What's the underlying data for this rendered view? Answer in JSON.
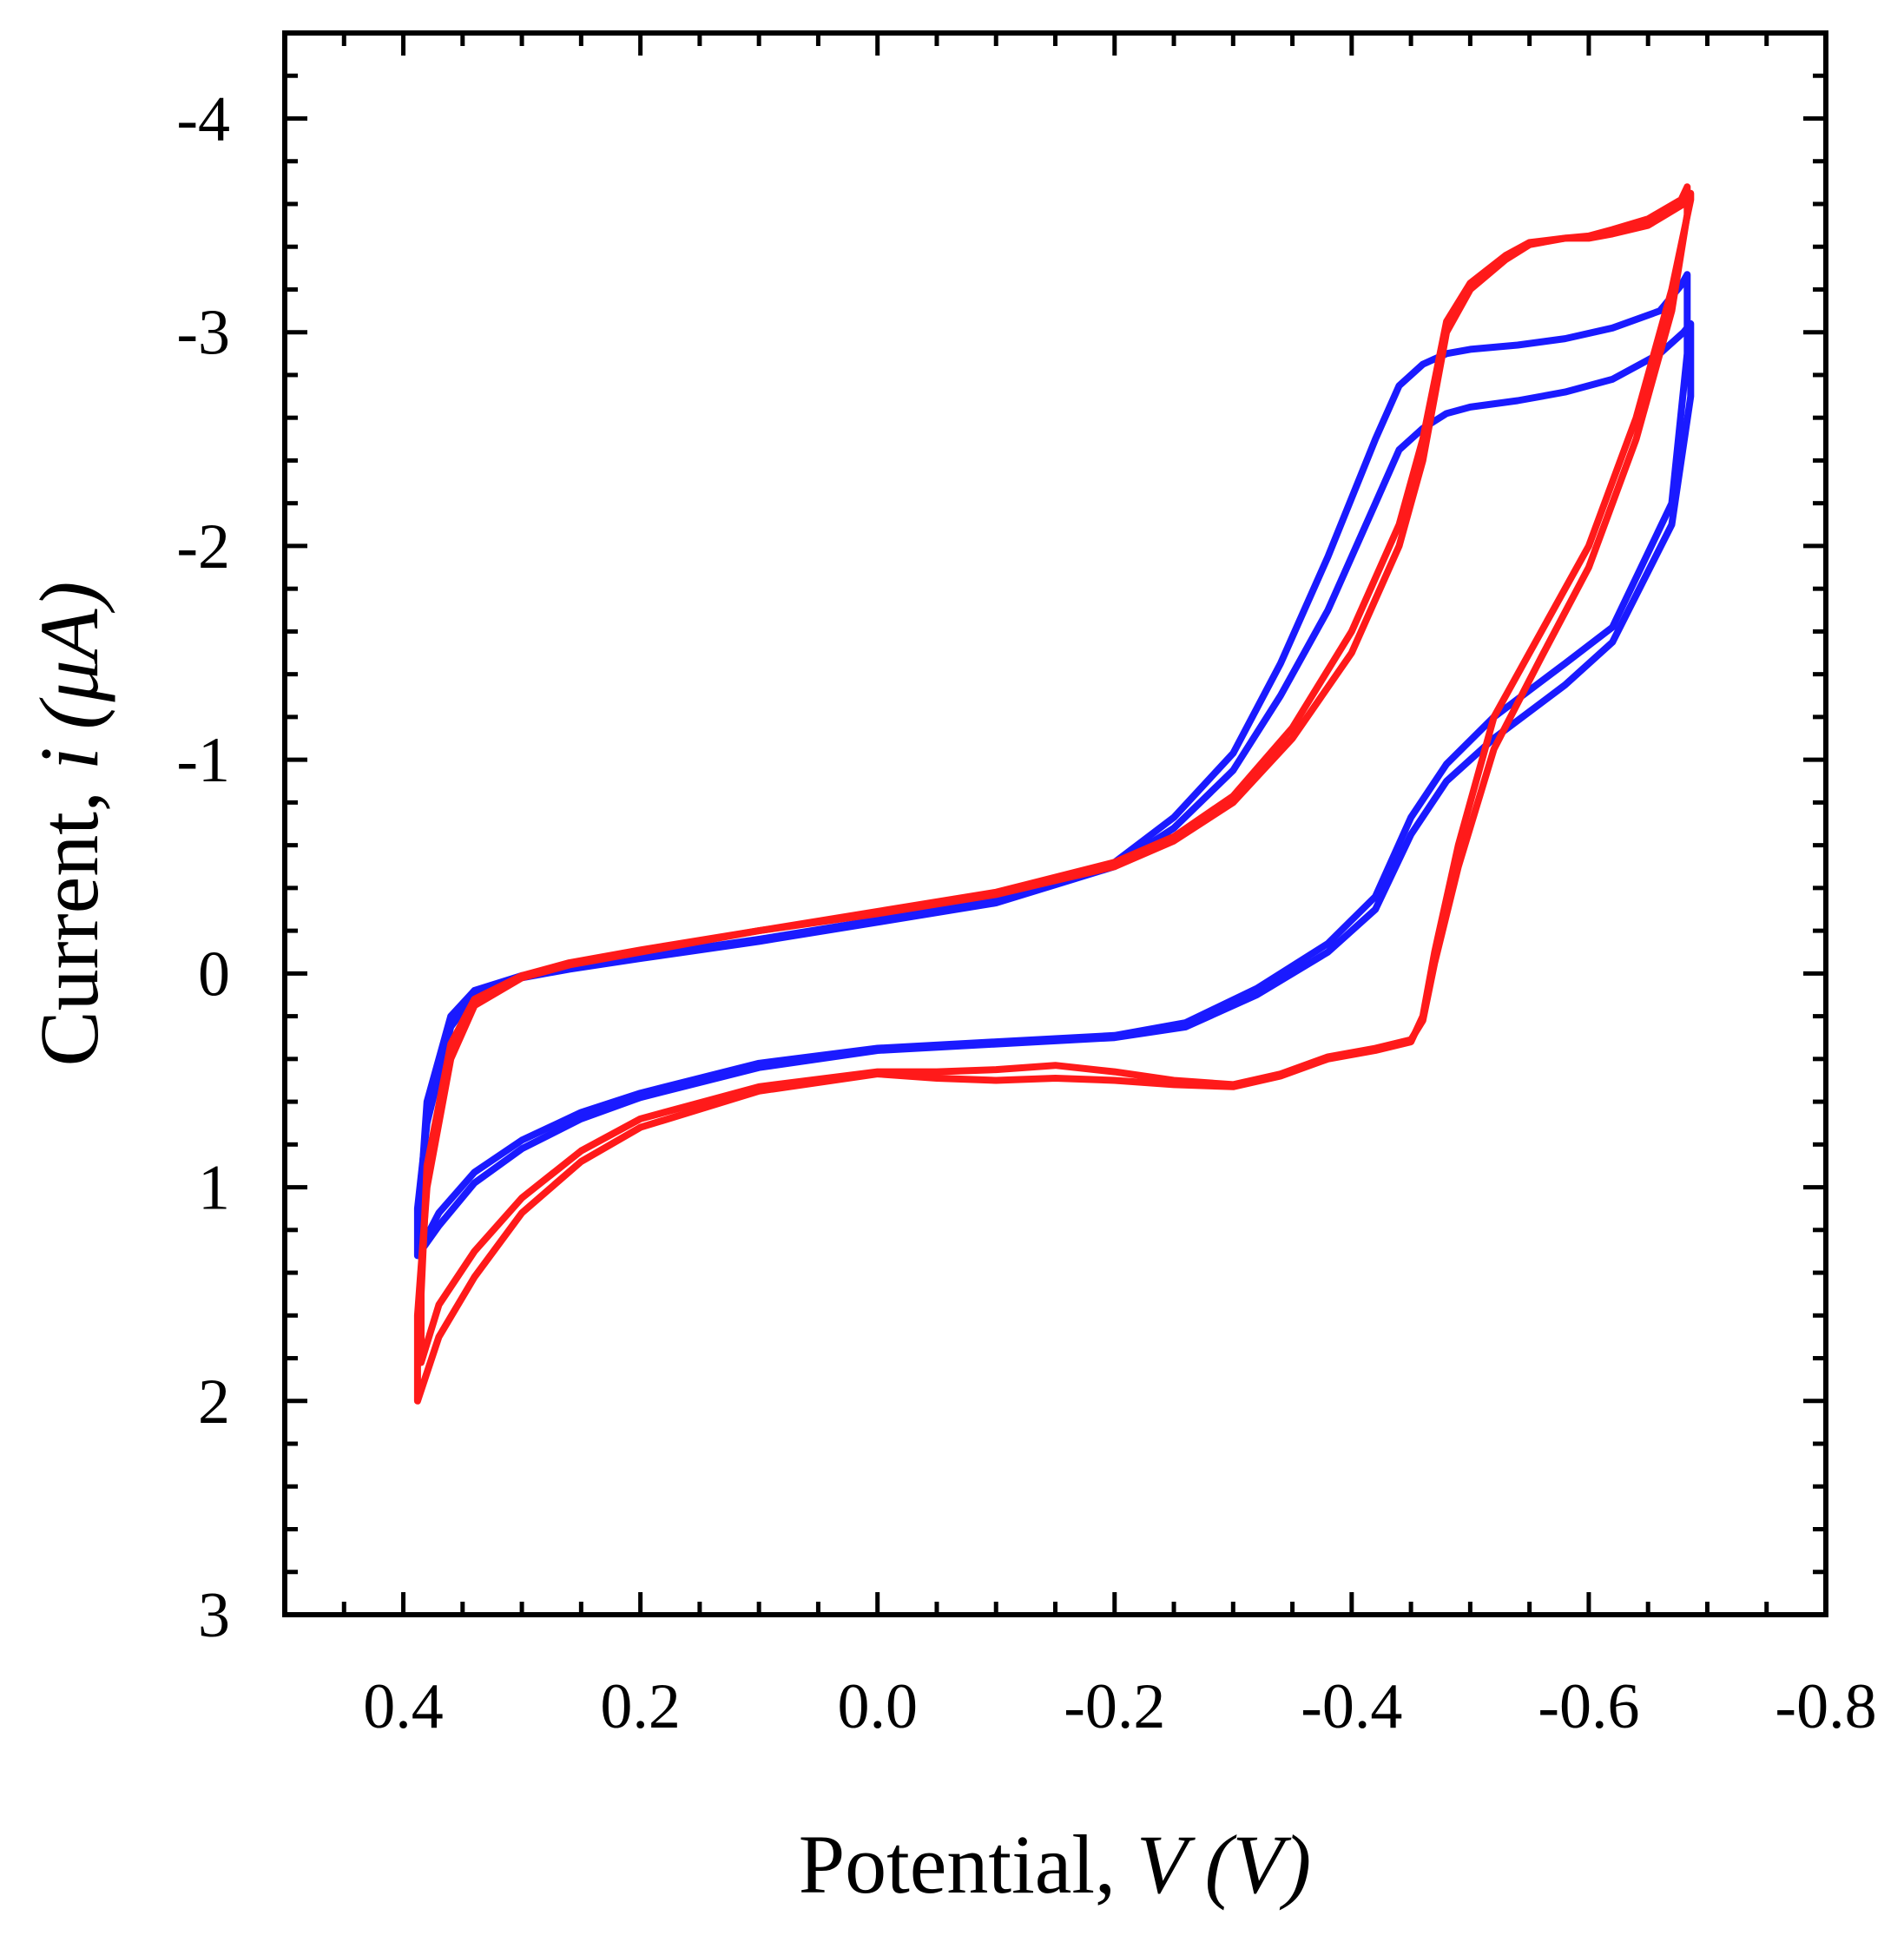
{
  "chart_data": {
    "type": "line",
    "title": "",
    "xlabel": {
      "prefix": "Potential, ",
      "var": "V",
      "unit": "(V)"
    },
    "ylabel": {
      "prefix": "Current, ",
      "var": "i",
      "unit": "(μA)"
    },
    "xlim": [
      0.5,
      -0.8
    ],
    "ylim": [
      3,
      -4.4
    ],
    "x_reversed": true,
    "y_reversed": true,
    "x_ticks": [
      0.4,
      0.2,
      0.0,
      -0.2,
      -0.4,
      -0.6,
      -0.8
    ],
    "x_tick_labels": [
      "0.4",
      "0.2",
      "0.0",
      "-0.2",
      "-0.4",
      "-0.6",
      "-0.8"
    ],
    "y_ticks": [
      -4,
      -3,
      -2,
      -1,
      0,
      1,
      2,
      3
    ],
    "y_tick_labels": [
      "-4",
      "-3",
      "-2",
      "-1",
      "0",
      "1",
      "2",
      "3"
    ],
    "grid": false,
    "series": [
      {
        "name": "blue",
        "color": "#1a1aff",
        "cycles": [
          {
            "x": [
              0.0,
              -0.1,
              -0.2,
              -0.26,
              -0.32,
              -0.38,
              -0.42,
              -0.45,
              -0.48,
              -0.52,
              -0.58,
              -0.62,
              -0.67,
              -0.686,
              -0.686,
              -0.68,
              -0.66,
              -0.62,
              -0.58,
              -0.54,
              -0.5,
              -0.48,
              -0.46,
              -0.44,
              -0.42,
              -0.38,
              -0.34,
              -0.3,
              -0.25,
              -0.2,
              -0.1,
              0.0,
              0.1,
              0.2,
              0.26,
              0.3,
              0.34,
              0.36,
              0.38,
              0.388,
              0.388,
              0.37,
              0.34,
              0.3,
              0.25,
              0.2,
              0.1,
              0.0
            ],
            "y": [
              0.36,
              0.33,
              0.3,
              0.25,
              0.1,
              -0.1,
              -0.3,
              -0.65,
              -0.9,
              -1.1,
              -1.35,
              -1.55,
              -2.1,
              -2.7,
              -3.04,
              -3.0,
              -2.9,
              -2.78,
              -2.72,
              -2.68,
              -2.65,
              -2.62,
              -2.55,
              -2.45,
              -2.2,
              -1.7,
              -1.3,
              -0.95,
              -0.68,
              -0.5,
              -0.33,
              -0.24,
              -0.15,
              -0.07,
              -0.02,
              0.02,
              0.1,
              0.25,
              0.7,
              1.1,
              1.32,
              1.18,
              0.98,
              0.82,
              0.68,
              0.58,
              0.44,
              0.36
            ]
          },
          {
            "x": [
              0.0,
              -0.1,
              -0.2,
              -0.26,
              -0.32,
              -0.38,
              -0.42,
              -0.45,
              -0.48,
              -0.52,
              -0.58,
              -0.62,
              -0.67,
              -0.683,
              -0.683,
              -0.678,
              -0.66,
              -0.62,
              -0.58,
              -0.54,
              -0.5,
              -0.48,
              -0.46,
              -0.44,
              -0.42,
              -0.38,
              -0.34,
              -0.3,
              -0.25,
              -0.2,
              -0.1,
              0.0,
              0.1,
              0.2,
              0.26,
              0.3,
              0.34,
              0.36,
              0.38,
              0.385,
              0.385,
              0.37,
              0.34,
              0.3,
              0.25,
              0.2,
              0.1,
              0.0
            ],
            "y": [
              0.35,
              0.32,
              0.29,
              0.23,
              0.07,
              -0.14,
              -0.36,
              -0.73,
              -0.98,
              -1.2,
              -1.45,
              -1.62,
              -2.2,
              -2.9,
              -3.27,
              -3.22,
              -3.1,
              -3.02,
              -2.97,
              -2.94,
              -2.92,
              -2.9,
              -2.85,
              -2.75,
              -2.5,
              -1.95,
              -1.45,
              -1.03,
              -0.73,
              -0.52,
              -0.34,
              -0.25,
              -0.16,
              -0.08,
              -0.03,
              0.01,
              0.08,
              0.2,
              0.6,
              1.0,
              1.28,
              1.12,
              0.93,
              0.78,
              0.65,
              0.56,
              0.42,
              0.35
            ]
          }
        ]
      },
      {
        "name": "red",
        "color": "#ff1a1a",
        "cycles": [
          {
            "x": [
              0.0,
              -0.05,
              -0.1,
              -0.15,
              -0.2,
              -0.25,
              -0.3,
              -0.34,
              -0.38,
              -0.42,
              -0.45,
              -0.46,
              -0.47,
              -0.49,
              -0.52,
              -0.56,
              -0.6,
              -0.64,
              -0.67,
              -0.686,
              -0.686,
              -0.68,
              -0.65,
              -0.62,
              -0.6,
              -0.58,
              -0.55,
              -0.53,
              -0.5,
              -0.48,
              -0.46,
              -0.44,
              -0.4,
              -0.35,
              -0.3,
              -0.25,
              -0.2,
              -0.1,
              0.0,
              0.1,
              0.2,
              0.26,
              0.3,
              0.34,
              0.36,
              0.38,
              0.388,
              0.388,
              0.37,
              0.34,
              0.3,
              0.25,
              0.2,
              0.1,
              0.0
            ],
            "y": [
              0.47,
              0.49,
              0.5,
              0.49,
              0.5,
              0.52,
              0.53,
              0.48,
              0.4,
              0.36,
              0.32,
              0.2,
              -0.1,
              -0.6,
              -1.2,
              -1.6,
              -2.0,
              -2.6,
              -3.2,
              -3.62,
              -3.65,
              -3.6,
              -3.5,
              -3.46,
              -3.44,
              -3.44,
              -3.41,
              -3.34,
              -3.2,
              -3.0,
              -2.4,
              -2.0,
              -1.5,
              -1.1,
              -0.8,
              -0.62,
              -0.5,
              -0.37,
              -0.28,
              -0.2,
              -0.1,
              -0.04,
              0.02,
              0.15,
              0.4,
              1.0,
              1.6,
              2.0,
              1.7,
              1.42,
              1.12,
              0.88,
              0.72,
              0.55,
              0.47
            ]
          },
          {
            "x": [
              0.0,
              -0.05,
              -0.1,
              -0.15,
              -0.2,
              -0.25,
              -0.3,
              -0.34,
              -0.38,
              -0.42,
              -0.45,
              -0.46,
              -0.47,
              -0.49,
              -0.52,
              -0.56,
              -0.6,
              -0.64,
              -0.67,
              -0.683,
              -0.683,
              -0.678,
              -0.65,
              -0.62,
              -0.6,
              -0.58,
              -0.55,
              -0.53,
              -0.5,
              -0.48,
              -0.46,
              -0.44,
              -0.4,
              -0.35,
              -0.3,
              -0.25,
              -0.2,
              -0.1,
              0.0,
              0.1,
              0.2,
              0.26,
              0.3,
              0.34,
              0.36,
              0.38,
              0.385,
              0.385,
              0.37,
              0.34,
              0.3,
              0.25,
              0.2,
              0.1,
              0.0
            ],
            "y": [
              0.46,
              0.46,
              0.45,
              0.43,
              0.46,
              0.5,
              0.52,
              0.47,
              0.39,
              0.35,
              0.31,
              0.22,
              -0.05,
              -0.5,
              -1.05,
              -1.48,
              -1.9,
              -2.5,
              -3.1,
              -3.55,
              -3.68,
              -3.62,
              -3.53,
              -3.48,
              -3.45,
              -3.44,
              -3.42,
              -3.36,
              -3.23,
              -3.05,
              -2.5,
              -2.1,
              -1.6,
              -1.15,
              -0.83,
              -0.64,
              -0.52,
              -0.38,
              -0.29,
              -0.2,
              -0.11,
              -0.05,
              0.01,
              0.12,
              0.33,
              0.9,
              1.5,
              1.82,
              1.55,
              1.3,
              1.05,
              0.83,
              0.68,
              0.53,
              0.46
            ]
          }
        ]
      }
    ]
  }
}
